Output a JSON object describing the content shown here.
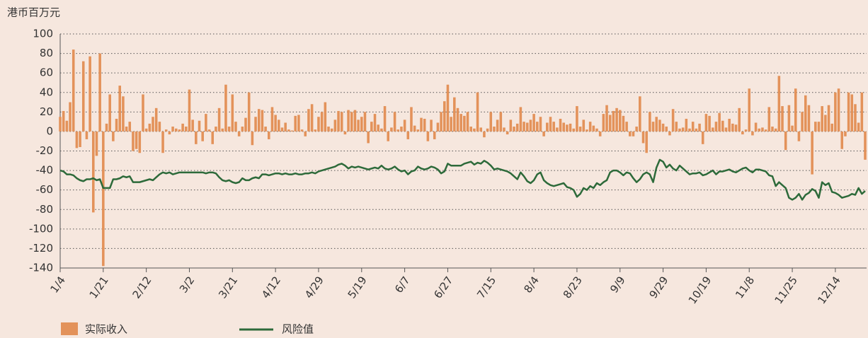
{
  "chart_data": {
    "type": "bar_line",
    "y_label": "港币百万元",
    "ylim": [
      -140,
      100
    ],
    "yticks": [
      -140,
      -120,
      -100,
      -80,
      -60,
      -40,
      -20,
      0,
      20,
      40,
      60,
      80,
      100
    ],
    "grid": true,
    "categories": [
      "1/4",
      null,
      null,
      null,
      null,
      null,
      null,
      null,
      null,
      null,
      null,
      null,
      null,
      "1/21",
      null,
      null,
      null,
      null,
      null,
      null,
      null,
      null,
      null,
      null,
      null,
      null,
      "2/12",
      null,
      null,
      null,
      null,
      null,
      null,
      null,
      null,
      null,
      null,
      null,
      null,
      "3/2",
      null,
      null,
      null,
      null,
      null,
      null,
      null,
      null,
      null,
      null,
      null,
      null,
      "3/21",
      null,
      null,
      null,
      null,
      null,
      null,
      null,
      null,
      null,
      null,
      null,
      null,
      "4/12",
      null,
      null,
      null,
      null,
      null,
      null,
      null,
      null,
      null,
      null,
      null,
      null,
      "4/29",
      null,
      null,
      null,
      null,
      null,
      null,
      null,
      null,
      null,
      null,
      null,
      null,
      "5/19",
      null,
      null,
      null,
      null,
      null,
      null,
      null,
      null,
      null,
      null,
      null,
      null,
      "6/7",
      null,
      null,
      null,
      null,
      null,
      null,
      null,
      null,
      null,
      null,
      null,
      null,
      "6/27",
      null,
      null,
      null,
      null,
      null,
      null,
      null,
      null,
      null,
      null,
      null,
      null,
      "7/15",
      null,
      null,
      null,
      null,
      null,
      null,
      null,
      null,
      null,
      null,
      null,
      null,
      "8/4",
      null,
      null,
      null,
      null,
      null,
      null,
      null,
      null,
      null,
      null,
      null,
      null,
      "8/23",
      null,
      null,
      null,
      null,
      null,
      null,
      null,
      null,
      null,
      null,
      null,
      null,
      "9/9",
      null,
      null,
      null,
      null,
      null,
      null,
      null,
      null,
      null,
      null,
      null,
      null,
      "9/29",
      null,
      null,
      null,
      null,
      null,
      null,
      null,
      null,
      null,
      null,
      null,
      null,
      "10/19",
      null,
      null,
      null,
      null,
      null,
      null,
      null,
      null,
      null,
      null,
      null,
      null,
      "11/8",
      null,
      null,
      null,
      null,
      null,
      null,
      null,
      null,
      null,
      null,
      null,
      null,
      "11/25",
      null,
      null,
      null,
      null,
      null,
      null,
      null,
      null,
      null,
      null,
      null,
      null,
      "12/14",
      null,
      null,
      null,
      null,
      null,
      null,
      null,
      null,
      null
    ],
    "series": [
      {
        "name": "实际收入",
        "type": "bar",
        "color": "#e3925a",
        "values": [
          15,
          21,
          11,
          30,
          84,
          -17,
          -16,
          72,
          -8,
          77,
          -83,
          -25,
          80,
          -138,
          8,
          38,
          -10,
          13,
          47,
          36,
          5,
          10,
          -20,
          -18,
          -22,
          38,
          3,
          8,
          15,
          24,
          10,
          -22,
          2,
          -3,
          5,
          3,
          2,
          8,
          5,
          43,
          12,
          -13,
          11,
          -10,
          18,
          2,
          -13,
          5,
          24,
          3,
          48,
          5,
          38,
          10,
          -5,
          5,
          14,
          40,
          -14,
          15,
          23,
          22,
          5,
          -8,
          25,
          17,
          12,
          4,
          9,
          2,
          1,
          16,
          17,
          2,
          -5,
          23,
          28,
          2,
          15,
          20,
          30,
          5,
          3,
          12,
          21,
          20,
          -3,
          22,
          20,
          22,
          12,
          15,
          20,
          -12,
          10,
          18,
          7,
          3,
          26,
          -10,
          4,
          20,
          2,
          5,
          12,
          -8,
          25,
          6,
          2,
          14,
          13,
          -10,
          12,
          -8,
          9,
          20,
          31,
          48,
          15,
          35,
          24,
          18,
          16,
          20,
          5,
          3,
          40,
          4,
          -6,
          3,
          20,
          5,
          12,
          20,
          4,
          -3,
          12,
          5,
          8,
          25,
          10,
          9,
          12,
          18,
          10,
          15,
          -5,
          9,
          15,
          10,
          4,
          13,
          9,
          7,
          8,
          3,
          26,
          5,
          12,
          2,
          10,
          6,
          3,
          -5,
          18,
          27,
          17,
          21,
          24,
          22,
          16,
          10,
          -5,
          -5,
          5,
          36,
          -12,
          -22,
          20,
          10,
          15,
          12,
          8,
          5,
          -4,
          23,
          10,
          3,
          4,
          13,
          3,
          10,
          3,
          8,
          -13,
          18,
          16,
          4,
          10,
          19,
          11,
          4,
          13,
          8,
          7,
          24,
          -3,
          2,
          44,
          -4,
          9,
          3,
          4,
          2,
          25,
          5,
          3,
          57,
          26,
          -19,
          27,
          6,
          44,
          -10,
          20,
          37,
          27,
          -44,
          10,
          10,
          26,
          17,
          27,
          8,
          40,
          44,
          -18,
          -5,
          40,
          38,
          28,
          9,
          40,
          -29
        ]
      },
      {
        "name": "风险值",
        "type": "line",
        "color": "#2d6a3a",
        "values": [
          -40,
          -41,
          -44,
          -44,
          -45,
          -48,
          -50,
          -51,
          -49,
          -49,
          -48,
          -50,
          -49,
          -58,
          -58,
          -58,
          -49,
          -49,
          -48,
          -46,
          -47,
          -46,
          -52,
          -52,
          -52,
          -51,
          -50,
          -49,
          -50,
          -47,
          -44,
          -42,
          -43,
          -42,
          -44,
          -43,
          -42,
          -42,
          -42,
          -42,
          -42,
          -42,
          -42,
          -42,
          -43,
          -42,
          -42,
          -43,
          -47,
          -50,
          -51,
          -50,
          -52,
          -53,
          -52,
          -48,
          -50,
          -50,
          -48,
          -47,
          -48,
          -44,
          -44,
          -45,
          -44,
          -43,
          -43,
          -44,
          -43,
          -44,
          -44,
          -43,
          -44,
          -44,
          -43,
          -43,
          -42,
          -43,
          -41,
          -40,
          -39,
          -38,
          -37,
          -36,
          -34,
          -33,
          -35,
          -38,
          -36,
          -37,
          -36,
          -37,
          -38,
          -39,
          -38,
          -37,
          -38,
          -35,
          -38,
          -39,
          -38,
          -36,
          -39,
          -41,
          -40,
          -44,
          -41,
          -40,
          -36,
          -38,
          -39,
          -38,
          -36,
          -37,
          -39,
          -43,
          -41,
          -33,
          -35,
          -35,
          -35,
          -35,
          -33,
          -32,
          -31,
          -34,
          -32,
          -33,
          -30,
          -32,
          -35,
          -39,
          -38,
          -39,
          -40,
          -41,
          -43,
          -46,
          -49,
          -42,
          -46,
          -51,
          -53,
          -50,
          -44,
          -42,
          -50,
          -53,
          -55,
          -56,
          -55,
          -54,
          -53,
          -57,
          -58,
          -60,
          -67,
          -64,
          -58,
          -60,
          -56,
          -58,
          -53,
          -55,
          -52,
          -50,
          -42,
          -40,
          -40,
          -42,
          -45,
          -42,
          -43,
          -48,
          -52,
          -49,
          -44,
          -42,
          -44,
          -52,
          -37,
          -29,
          -31,
          -37,
          -34,
          -38,
          -40,
          -35,
          -38,
          -41,
          -44,
          -43,
          -43,
          -42,
          -45,
          -44,
          -42,
          -40,
          -44,
          -41,
          -41,
          -40,
          -39,
          -41,
          -42,
          -40,
          -38,
          -37,
          -40,
          -42,
          -39,
          -39,
          -40,
          -41,
          -45,
          -46,
          -56,
          -52,
          -55,
          -58,
          -68,
          -70,
          -68,
          -64,
          -70,
          -65,
          -63,
          -59,
          -61,
          -68,
          -52,
          -55,
          -53,
          -62,
          -63,
          -65,
          -68,
          -67,
          -66,
          -64,
          -65,
          -58,
          -64,
          -61
        ]
      }
    ]
  }
}
